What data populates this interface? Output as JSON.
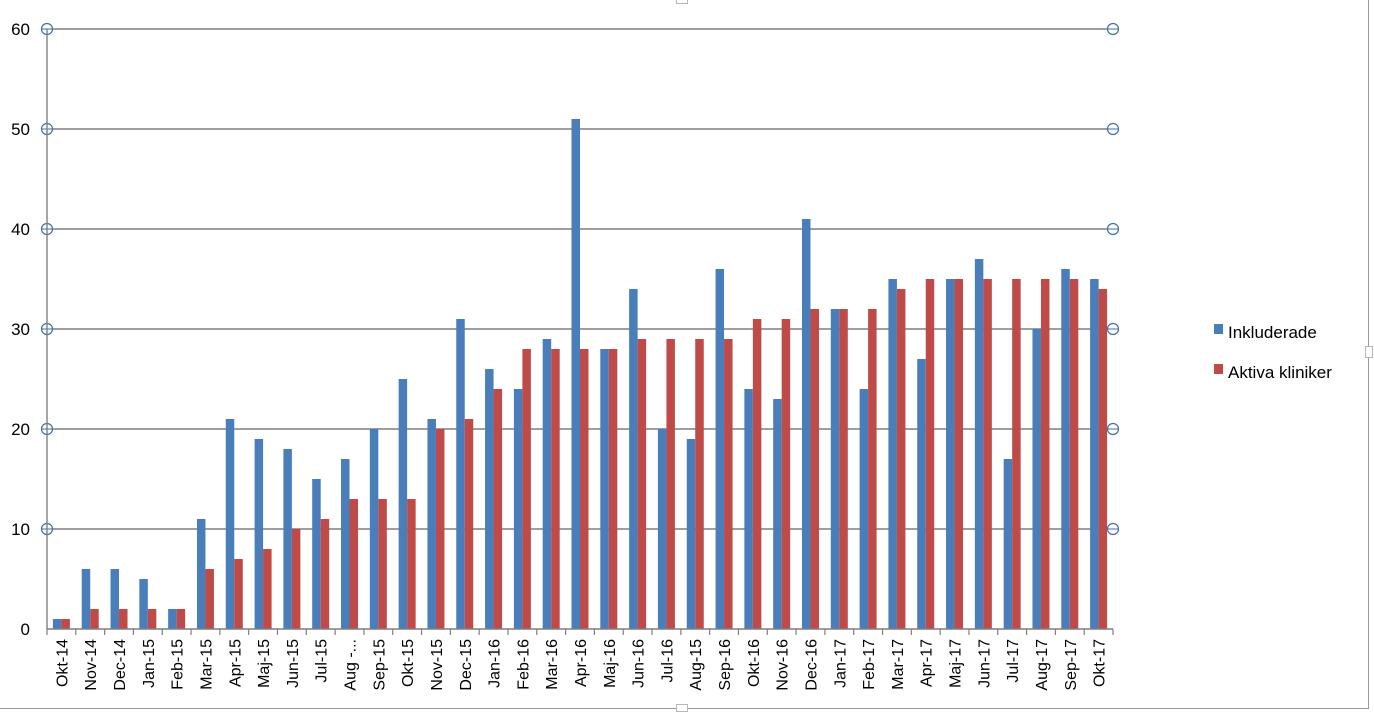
{
  "chart_data": {
    "type": "bar",
    "title": "",
    "xlabel": "",
    "ylabel": "",
    "ylim": [
      0,
      60
    ],
    "yticks": [
      0,
      10,
      20,
      30,
      40,
      50,
      60
    ],
    "grid": true,
    "legend_position": "right",
    "categories": [
      "Okt-14",
      "Nov-14",
      "Dec-14",
      "Jan-15",
      "Feb-15",
      "Mar-15",
      "Apr-15",
      "Maj-15",
      "Jun-15",
      "Jul-15",
      "Aug -...",
      "Sep-15",
      "Okt-15",
      "Nov-15",
      "Dec-15",
      "Jan-16",
      "Feb-16",
      "Mar-16",
      "Apr-16",
      "Maj-16",
      "Jun-16",
      "Jul-16",
      "Aug-15",
      "Sep-16",
      "Okt-16",
      "Nov-16",
      "Dec-16",
      "Jan-17",
      "Feb-17",
      "Mar-17",
      "Apr-17",
      "Maj-17",
      "Jun-17",
      "Jul-17",
      "Aug-17",
      "Sep-17",
      "Okt-17"
    ],
    "series": [
      {
        "name": "Inkluderade",
        "color": "#4a7ebb",
        "values": [
          1,
          6,
          6,
          5,
          2,
          11,
          21,
          19,
          18,
          15,
          17,
          20,
          25,
          21,
          31,
          26,
          24,
          29,
          51,
          28,
          34,
          20,
          19,
          36,
          24,
          23,
          41,
          32,
          24,
          35,
          27,
          35,
          37,
          17,
          30,
          36,
          35
        ]
      },
      {
        "name": "Aktiva kliniker",
        "color": "#be4b48",
        "values": [
          1,
          2,
          2,
          2,
          2,
          6,
          7,
          8,
          10,
          11,
          13,
          13,
          13,
          20,
          21,
          24,
          28,
          28,
          28,
          28,
          29,
          29,
          29,
          29,
          31,
          31,
          32,
          32,
          32,
          34,
          35,
          35,
          35,
          35,
          35,
          35,
          34
        ]
      }
    ]
  }
}
